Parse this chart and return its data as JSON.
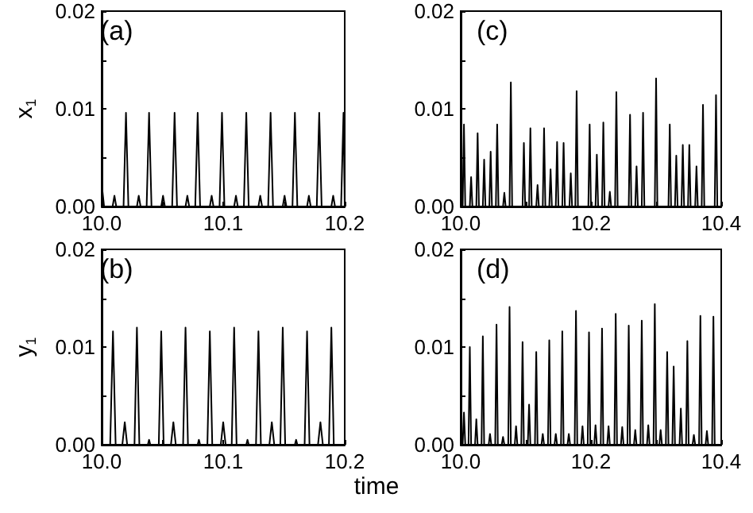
{
  "chart_data": [
    {
      "type": "line",
      "ylabel": "x$_{1}$",
      "annotations": [
        "(a)"
      ],
      "xlim": [
        10.0,
        10.2
      ],
      "xticks": [
        {
          "value": 10.0,
          "label": "10.0"
        },
        {
          "value": 10.05,
          "label": null
        },
        {
          "value": 10.1,
          "label": "10.1"
        },
        {
          "value": 10.15,
          "label": null
        },
        {
          "value": 10.2,
          "label": "10.2"
        }
      ],
      "ylim": [
        0,
        0.02
      ],
      "yticks": [
        {
          "value": 0,
          "label": "0.00"
        },
        {
          "value": 0.005,
          "label": null
        },
        {
          "value": 0.01,
          "label": "0.01"
        },
        {
          "value": 0.015,
          "label": null
        },
        {
          "value": 0.02,
          "label": "0.02"
        }
      ],
      "grid": false,
      "marker": "none",
      "line_style": "solid",
      "series": [
        {
          "color": "#000000",
          "x": [
            10.0,
            10.002,
            10.009,
            10.0105,
            10.012,
            10.018,
            10.02,
            10.022,
            10.029,
            10.0305,
            10.032,
            10.037,
            10.039,
            10.041,
            10.049,
            10.0505,
            10.052,
            10.058,
            10.06,
            10.062,
            10.069,
            10.0705,
            10.072,
            10.077,
            10.079,
            10.081,
            10.089,
            10.0905,
            10.092,
            10.097,
            10.099,
            10.101,
            10.109,
            10.1105,
            10.112,
            10.117,
            10.119,
            10.121,
            10.129,
            10.1305,
            10.132,
            10.137,
            10.139,
            10.141,
            10.149,
            10.1505,
            10.152,
            10.157,
            10.159,
            10.161,
            10.169,
            10.1705,
            10.172,
            10.177,
            10.179,
            10.181,
            10.189,
            10.1905,
            10.192,
            10.197,
            10.199,
            10.2
          ],
          "values": [
            0.0023,
            0,
            0,
            0.0011,
            0,
            0,
            0.0096,
            0,
            0,
            0.0011,
            0,
            0,
            0.0096,
            0,
            0,
            0.0011,
            0,
            0,
            0.0096,
            0,
            0,
            0.0011,
            0,
            0,
            0.0096,
            0,
            0,
            0.0011,
            0,
            0,
            0.0096,
            0,
            0,
            0.0011,
            0,
            0,
            0.0096,
            0,
            0,
            0.0011,
            0,
            0,
            0.0096,
            0,
            0,
            0.0011,
            0,
            0,
            0.0096,
            0,
            0,
            0.0011,
            0,
            0,
            0.0096,
            0,
            0,
            0.0011,
            0,
            0,
            0.0096,
            0
          ]
        }
      ]
    },
    {
      "type": "line",
      "ylabel": "y$_{1}$",
      "annotations": [
        "(b)"
      ],
      "xlim": [
        10.0,
        10.2
      ],
      "xticks": [
        {
          "value": 10.0,
          "label": "10.0"
        },
        {
          "value": 10.05,
          "label": null
        },
        {
          "value": 10.1,
          "label": "10.1"
        },
        {
          "value": 10.15,
          "label": null
        },
        {
          "value": 10.2,
          "label": "10.2"
        }
      ],
      "ylim": [
        0,
        0.02
      ],
      "yticks": [
        {
          "value": 0,
          "label": "0.00"
        },
        {
          "value": 0.005,
          "label": null
        },
        {
          "value": 0.01,
          "label": "0.01"
        },
        {
          "value": 0.015,
          "label": null
        },
        {
          "value": 0.02,
          "label": "0.02"
        }
      ],
      "grid": false,
      "marker": "none",
      "line_style": "solid",
      "series": [
        {
          "color": "#000000",
          "x": [
            10.0,
            10.007,
            10.0093,
            10.0115,
            10.017,
            10.019,
            10.021,
            10.027,
            10.029,
            10.031,
            10.038,
            10.039,
            10.04,
            10.047,
            10.049,
            10.051,
            10.057,
            10.059,
            10.061,
            10.067,
            10.069,
            10.071,
            10.079,
            10.08,
            10.081,
            10.087,
            10.089,
            10.091,
            10.098,
            10.1,
            10.102,
            10.107,
            10.109,
            10.111,
            10.119,
            10.12,
            10.121,
            10.127,
            10.129,
            10.131,
            10.138,
            10.14,
            10.142,
            10.147,
            10.149,
            10.151,
            10.159,
            10.16,
            10.161,
            10.167,
            10.169,
            10.171,
            10.178,
            10.18,
            10.182,
            10.187,
            10.189,
            10.191,
            10.2
          ],
          "values": [
            0,
            0,
            0.0116,
            0,
            0,
            0.0023,
            0,
            0,
            0.012,
            0,
            0,
            0.0005,
            0,
            0,
            0.0116,
            0,
            0,
            0.0023,
            0,
            0,
            0.012,
            0,
            0,
            0.0005,
            0,
            0,
            0.0116,
            0,
            0,
            0.0023,
            0,
            0,
            0.012,
            0,
            0,
            0.0005,
            0,
            0,
            0.0116,
            0,
            0,
            0.0023,
            0,
            0,
            0.012,
            0,
            0,
            0.0005,
            0,
            0,
            0.0116,
            0,
            0,
            0.0023,
            0,
            0,
            0.012,
            0,
            0
          ]
        }
      ]
    },
    {
      "type": "line",
      "annotations": [
        "(c)"
      ],
      "xlim": [
        10.0,
        10.4
      ],
      "xticks": [
        {
          "value": 10.0,
          "label": "10.0"
        },
        {
          "value": 10.1,
          "label": null
        },
        {
          "value": 10.2,
          "label": "10.2"
        },
        {
          "value": 10.3,
          "label": null
        },
        {
          "value": 10.4,
          "label": "10.4"
        }
      ],
      "ylim": [
        0,
        0.02
      ],
      "yticks": [
        {
          "value": 0,
          "label": "0.00"
        },
        {
          "value": 0.005,
          "label": null
        },
        {
          "value": 0.01,
          "label": "0.01"
        },
        {
          "value": 0.015,
          "label": null
        },
        {
          "value": 0.02,
          "label": "0.02"
        }
      ],
      "grid": false,
      "marker": "none",
      "line_style": "solid",
      "series": [
        {
          "color": "#000000",
          "x": [
            10.0,
            10.003,
            10.005,
            10.007,
            10.014,
            10.016,
            10.018,
            10.024,
            10.026,
            10.028,
            10.034,
            10.036,
            10.038,
            10.044,
            10.046,
            10.048,
            10.054,
            10.056,
            10.058,
            10.065,
            10.067,
            10.069,
            10.075,
            10.077,
            10.079,
            10.095,
            10.097,
            10.099,
            10.105,
            10.107,
            10.109,
            10.116,
            10.118,
            10.12,
            10.126,
            10.128,
            10.13,
            10.136,
            10.138,
            10.14,
            10.146,
            10.148,
            10.15,
            10.156,
            10.158,
            10.16,
            10.167,
            10.169,
            10.171,
            10.176,
            10.178,
            10.18,
            10.196,
            10.198,
            10.2,
            10.207,
            10.209,
            10.211,
            10.217,
            10.219,
            10.221,
            10.227,
            10.229,
            10.231,
            10.237,
            10.239,
            10.241,
            10.258,
            10.26,
            10.262,
            10.268,
            10.27,
            10.272,
            10.278,
            10.28,
            10.282,
            10.298,
            10.3,
            10.302,
            10.319,
            10.321,
            10.323,
            10.329,
            10.331,
            10.333,
            10.339,
            10.341,
            10.343,
            10.349,
            10.351,
            10.353,
            10.36,
            10.362,
            10.364,
            10.37,
            10.372,
            10.374,
            10.39,
            10.392,
            10.394,
            10.4
          ],
          "values": [
            0,
            0,
            0.0084,
            0,
            0,
            0.003,
            0,
            0,
            0.0075,
            0,
            0,
            0.0048,
            0,
            0,
            0.0056,
            0,
            0,
            0.0084,
            0,
            0,
            0.0014,
            0,
            0,
            0.0127,
            0,
            0,
            0.0065,
            0,
            0,
            0.008,
            0,
            0,
            0.0022,
            0,
            0,
            0.008,
            0,
            0,
            0.0038,
            0,
            0,
            0.0066,
            0,
            0,
            0.0065,
            0,
            0,
            0.0034,
            0,
            0,
            0.0118,
            0,
            0,
            0.0084,
            0,
            0,
            0.0053,
            0,
            0,
            0.0086,
            0,
            0,
            0.0015,
            0,
            0,
            0.0117,
            0,
            0,
            0.0094,
            0,
            0,
            0.0041,
            0,
            0,
            0.0096,
            0,
            0,
            0.0131,
            0,
            0,
            0.0084,
            0,
            0,
            0.0052,
            0,
            0,
            0.0063,
            0,
            0,
            0.0063,
            0,
            0,
            0.0041,
            0,
            0,
            0.0104,
            0,
            0,
            0.0114,
            0,
            0
          ]
        }
      ]
    },
    {
      "type": "line",
      "xlabel": "time",
      "annotations": [
        "(d)"
      ],
      "xlim": [
        10.0,
        10.4
      ],
      "xticks": [
        {
          "value": 10.0,
          "label": "10.0"
        },
        {
          "value": 10.1,
          "label": null
        },
        {
          "value": 10.2,
          "label": "10.2"
        },
        {
          "value": 10.3,
          "label": null
        },
        {
          "value": 10.4,
          "label": "10.4"
        }
      ],
      "ylim": [
        0,
        0.02
      ],
      "yticks": [
        {
          "value": 0,
          "label": "0.00"
        },
        {
          "value": 0.005,
          "label": null
        },
        {
          "value": 0.01,
          "label": "0.01"
        },
        {
          "value": 0.015,
          "label": null
        },
        {
          "value": 0.02,
          "label": "0.02"
        }
      ],
      "grid": false,
      "marker": "none",
      "line_style": "solid",
      "series": [
        {
          "color": "#000000",
          "x": [
            10.0,
            10.003,
            10.005,
            10.007,
            10.012,
            10.014,
            10.016,
            10.022,
            10.024,
            10.026,
            10.032,
            10.034,
            10.036,
            10.043,
            10.045,
            10.047,
            10.053,
            10.055,
            10.057,
            10.063,
            10.065,
            10.067,
            10.073,
            10.075,
            10.077,
            10.083,
            10.085,
            10.087,
            10.093,
            10.095,
            10.097,
            10.103,
            10.105,
            10.107,
            10.114,
            10.116,
            10.118,
            10.124,
            10.126,
            10.128,
            10.134,
            10.136,
            10.138,
            10.144,
            10.146,
            10.148,
            10.154,
            10.156,
            10.158,
            10.164,
            10.166,
            10.168,
            10.175,
            10.177,
            10.179,
            10.185,
            10.187,
            10.189,
            10.195,
            10.197,
            10.199,
            10.205,
            10.207,
            10.209,
            10.215,
            10.217,
            10.219,
            10.225,
            10.227,
            10.229,
            10.236,
            10.238,
            10.24,
            10.246,
            10.248,
            10.25,
            10.256,
            10.258,
            10.26,
            10.266,
            10.268,
            10.27,
            10.276,
            10.278,
            10.28,
            10.286,
            10.288,
            10.29,
            10.296,
            10.298,
            10.3,
            10.305,
            10.307,
            10.309,
            10.315,
            10.317,
            10.319,
            10.325,
            10.327,
            10.329,
            10.336,
            10.338,
            10.34,
            10.346,
            10.348,
            10.35,
            10.356,
            10.358,
            10.36,
            10.366,
            10.368,
            10.37,
            10.376,
            10.378,
            10.38,
            10.386,
            10.388,
            10.39,
            10.4
          ],
          "values": [
            0,
            0,
            0.0033,
            0,
            0,
            0.01,
            0,
            0,
            0.0026,
            0,
            0,
            0.0111,
            0,
            0,
            0.0011,
            0,
            0,
            0.0123,
            0,
            0,
            0.0008,
            0,
            0,
            0.0141,
            0,
            0,
            0.0019,
            0,
            0,
            0.0105,
            0,
            0,
            0.0041,
            0,
            0,
            0.0095,
            0,
            0,
            0.0011,
            0,
            0,
            0.0107,
            0,
            0,
            0.0011,
            0,
            0,
            0.0116,
            0,
            0,
            0.0011,
            0,
            0,
            0.0137,
            0,
            0,
            0.0019,
            0,
            0,
            0.0115,
            0,
            0,
            0.002,
            0,
            0,
            0.0119,
            0,
            0,
            0.0019,
            0,
            0,
            0.0134,
            0,
            0,
            0.0018,
            0,
            0,
            0.0122,
            0,
            0,
            0.0015,
            0,
            0,
            0.0127,
            0,
            0,
            0.002,
            0,
            0,
            0.0144,
            0,
            0,
            0.0015,
            0,
            0,
            0.0095,
            0,
            0,
            0.008,
            0,
            0,
            0.0037,
            0,
            0,
            0.0106,
            0,
            0,
            0.001,
            0,
            0,
            0.0132,
            0,
            0,
            0.0014,
            0,
            0,
            0.0131,
            0,
            0
          ]
        }
      ]
    }
  ]
}
